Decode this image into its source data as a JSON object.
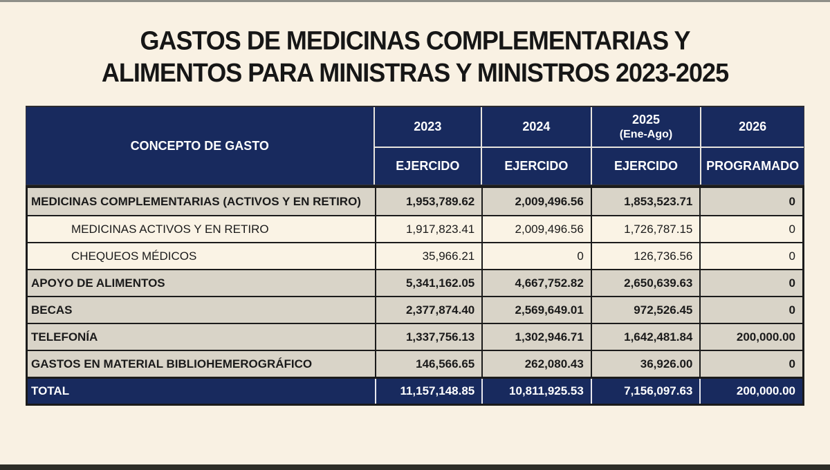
{
  "page": {
    "title_line1": "GASTOS DE MEDICINAS COMPLEMENTARIAS Y",
    "title_line2": "ALIMENTOS PARA MINISTRAS Y MINISTROS 2023-2025"
  },
  "colors": {
    "navy_header": "#182a5e",
    "category_row_bg": "#d9d4c8",
    "sub_row_bg": "#faf3e5",
    "page_background": "#f9f1e3",
    "border": "#1b1b1b"
  },
  "table": {
    "concept_header": "CONCEPTO DE GASTO",
    "year_columns": [
      {
        "year": "2023",
        "year_sub": "",
        "type_label": "EJERCIDO"
      },
      {
        "year": "2024",
        "year_sub": "",
        "type_label": "EJERCIDO"
      },
      {
        "year": "2025",
        "year_sub": "(Ene-Ago)",
        "type_label": "EJERCIDO"
      },
      {
        "year": "2026",
        "year_sub": "",
        "type_label": "PROGRAMADO"
      }
    ],
    "rows": [
      {
        "style": "category",
        "concept": "MEDICINAS COMPLEMENTARIAS (ACTIVOS Y EN RETIRO)",
        "values": [
          "1,953,789.62",
          "2,009,496.56",
          "1,853,523.71",
          "0"
        ]
      },
      {
        "style": "sub",
        "concept": "MEDICINAS ACTIVOS Y EN RETIRO",
        "values": [
          "1,917,823.41",
          "2,009,496.56",
          "1,726,787.15",
          "0"
        ]
      },
      {
        "style": "sub",
        "concept": "CHEQUEOS MÉDICOS",
        "values": [
          "35,966.21",
          "0",
          "126,736.56",
          "0"
        ]
      },
      {
        "style": "category",
        "concept": "APOYO DE ALIMENTOS",
        "values": [
          "5,341,162.05",
          "4,667,752.82",
          "2,650,639.63",
          "0"
        ]
      },
      {
        "style": "category",
        "concept": "BECAS",
        "values": [
          "2,377,874.40",
          "2,569,649.01",
          "972,526.45",
          "0"
        ]
      },
      {
        "style": "category",
        "concept": "TELEFONÍA",
        "values": [
          "1,337,756.13",
          "1,302,946.71",
          "1,642,481.84",
          "200,000.00"
        ]
      },
      {
        "style": "category",
        "concept": "GASTOS EN MATERIAL BIBLIOHEMEROGRÁFICO",
        "values": [
          "146,566.65",
          "262,080.43",
          "36,926.00",
          "0"
        ]
      },
      {
        "style": "total",
        "concept": "TOTAL",
        "values": [
          "11,157,148.85",
          "10,811,925.53",
          "7,156,097.63",
          "200,000.00"
        ]
      }
    ]
  }
}
